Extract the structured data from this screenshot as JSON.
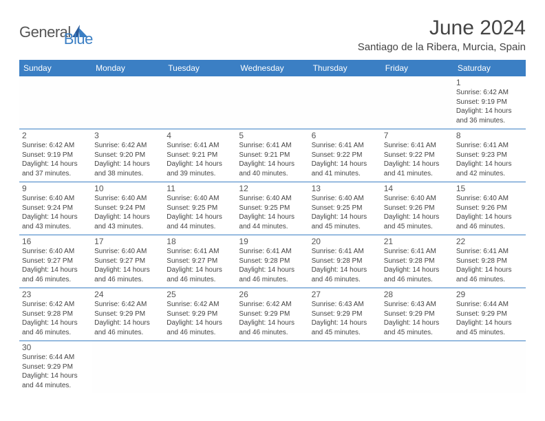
{
  "logo": {
    "text1": "General",
    "text2": "Blue"
  },
  "title": "June 2024",
  "subtitle": "Santiago de la Ribera, Murcia, Spain",
  "colors": {
    "header_bg": "#3b7fc4",
    "header_text": "#ffffff",
    "body_text": "#444444",
    "rule": "#3b7fc4"
  },
  "weekdays": [
    "Sunday",
    "Monday",
    "Tuesday",
    "Wednesday",
    "Thursday",
    "Friday",
    "Saturday"
  ],
  "weeks": [
    [
      null,
      null,
      null,
      null,
      null,
      null,
      {
        "n": "1",
        "sr": "Sunrise: 6:42 AM",
        "ss": "Sunset: 9:19 PM",
        "d1": "Daylight: 14 hours",
        "d2": "and 36 minutes."
      }
    ],
    [
      {
        "n": "2",
        "sr": "Sunrise: 6:42 AM",
        "ss": "Sunset: 9:19 PM",
        "d1": "Daylight: 14 hours",
        "d2": "and 37 minutes."
      },
      {
        "n": "3",
        "sr": "Sunrise: 6:42 AM",
        "ss": "Sunset: 9:20 PM",
        "d1": "Daylight: 14 hours",
        "d2": "and 38 minutes."
      },
      {
        "n": "4",
        "sr": "Sunrise: 6:41 AM",
        "ss": "Sunset: 9:21 PM",
        "d1": "Daylight: 14 hours",
        "d2": "and 39 minutes."
      },
      {
        "n": "5",
        "sr": "Sunrise: 6:41 AM",
        "ss": "Sunset: 9:21 PM",
        "d1": "Daylight: 14 hours",
        "d2": "and 40 minutes."
      },
      {
        "n": "6",
        "sr": "Sunrise: 6:41 AM",
        "ss": "Sunset: 9:22 PM",
        "d1": "Daylight: 14 hours",
        "d2": "and 41 minutes."
      },
      {
        "n": "7",
        "sr": "Sunrise: 6:41 AM",
        "ss": "Sunset: 9:22 PM",
        "d1": "Daylight: 14 hours",
        "d2": "and 41 minutes."
      },
      {
        "n": "8",
        "sr": "Sunrise: 6:41 AM",
        "ss": "Sunset: 9:23 PM",
        "d1": "Daylight: 14 hours",
        "d2": "and 42 minutes."
      }
    ],
    [
      {
        "n": "9",
        "sr": "Sunrise: 6:40 AM",
        "ss": "Sunset: 9:24 PM",
        "d1": "Daylight: 14 hours",
        "d2": "and 43 minutes."
      },
      {
        "n": "10",
        "sr": "Sunrise: 6:40 AM",
        "ss": "Sunset: 9:24 PM",
        "d1": "Daylight: 14 hours",
        "d2": "and 43 minutes."
      },
      {
        "n": "11",
        "sr": "Sunrise: 6:40 AM",
        "ss": "Sunset: 9:25 PM",
        "d1": "Daylight: 14 hours",
        "d2": "and 44 minutes."
      },
      {
        "n": "12",
        "sr": "Sunrise: 6:40 AM",
        "ss": "Sunset: 9:25 PM",
        "d1": "Daylight: 14 hours",
        "d2": "and 44 minutes."
      },
      {
        "n": "13",
        "sr": "Sunrise: 6:40 AM",
        "ss": "Sunset: 9:25 PM",
        "d1": "Daylight: 14 hours",
        "d2": "and 45 minutes."
      },
      {
        "n": "14",
        "sr": "Sunrise: 6:40 AM",
        "ss": "Sunset: 9:26 PM",
        "d1": "Daylight: 14 hours",
        "d2": "and 45 minutes."
      },
      {
        "n": "15",
        "sr": "Sunrise: 6:40 AM",
        "ss": "Sunset: 9:26 PM",
        "d1": "Daylight: 14 hours",
        "d2": "and 46 minutes."
      }
    ],
    [
      {
        "n": "16",
        "sr": "Sunrise: 6:40 AM",
        "ss": "Sunset: 9:27 PM",
        "d1": "Daylight: 14 hours",
        "d2": "and 46 minutes."
      },
      {
        "n": "17",
        "sr": "Sunrise: 6:40 AM",
        "ss": "Sunset: 9:27 PM",
        "d1": "Daylight: 14 hours",
        "d2": "and 46 minutes."
      },
      {
        "n": "18",
        "sr": "Sunrise: 6:41 AM",
        "ss": "Sunset: 9:27 PM",
        "d1": "Daylight: 14 hours",
        "d2": "and 46 minutes."
      },
      {
        "n": "19",
        "sr": "Sunrise: 6:41 AM",
        "ss": "Sunset: 9:28 PM",
        "d1": "Daylight: 14 hours",
        "d2": "and 46 minutes."
      },
      {
        "n": "20",
        "sr": "Sunrise: 6:41 AM",
        "ss": "Sunset: 9:28 PM",
        "d1": "Daylight: 14 hours",
        "d2": "and 46 minutes."
      },
      {
        "n": "21",
        "sr": "Sunrise: 6:41 AM",
        "ss": "Sunset: 9:28 PM",
        "d1": "Daylight: 14 hours",
        "d2": "and 46 minutes."
      },
      {
        "n": "22",
        "sr": "Sunrise: 6:41 AM",
        "ss": "Sunset: 9:28 PM",
        "d1": "Daylight: 14 hours",
        "d2": "and 46 minutes."
      }
    ],
    [
      {
        "n": "23",
        "sr": "Sunrise: 6:42 AM",
        "ss": "Sunset: 9:28 PM",
        "d1": "Daylight: 14 hours",
        "d2": "and 46 minutes."
      },
      {
        "n": "24",
        "sr": "Sunrise: 6:42 AM",
        "ss": "Sunset: 9:29 PM",
        "d1": "Daylight: 14 hours",
        "d2": "and 46 minutes."
      },
      {
        "n": "25",
        "sr": "Sunrise: 6:42 AM",
        "ss": "Sunset: 9:29 PM",
        "d1": "Daylight: 14 hours",
        "d2": "and 46 minutes."
      },
      {
        "n": "26",
        "sr": "Sunrise: 6:42 AM",
        "ss": "Sunset: 9:29 PM",
        "d1": "Daylight: 14 hours",
        "d2": "and 46 minutes."
      },
      {
        "n": "27",
        "sr": "Sunrise: 6:43 AM",
        "ss": "Sunset: 9:29 PM",
        "d1": "Daylight: 14 hours",
        "d2": "and 45 minutes."
      },
      {
        "n": "28",
        "sr": "Sunrise: 6:43 AM",
        "ss": "Sunset: 9:29 PM",
        "d1": "Daylight: 14 hours",
        "d2": "and 45 minutes."
      },
      {
        "n": "29",
        "sr": "Sunrise: 6:44 AM",
        "ss": "Sunset: 9:29 PM",
        "d1": "Daylight: 14 hours",
        "d2": "and 45 minutes."
      }
    ],
    [
      {
        "n": "30",
        "sr": "Sunrise: 6:44 AM",
        "ss": "Sunset: 9:29 PM",
        "d1": "Daylight: 14 hours",
        "d2": "and 44 minutes."
      },
      null,
      null,
      null,
      null,
      null,
      null
    ]
  ]
}
